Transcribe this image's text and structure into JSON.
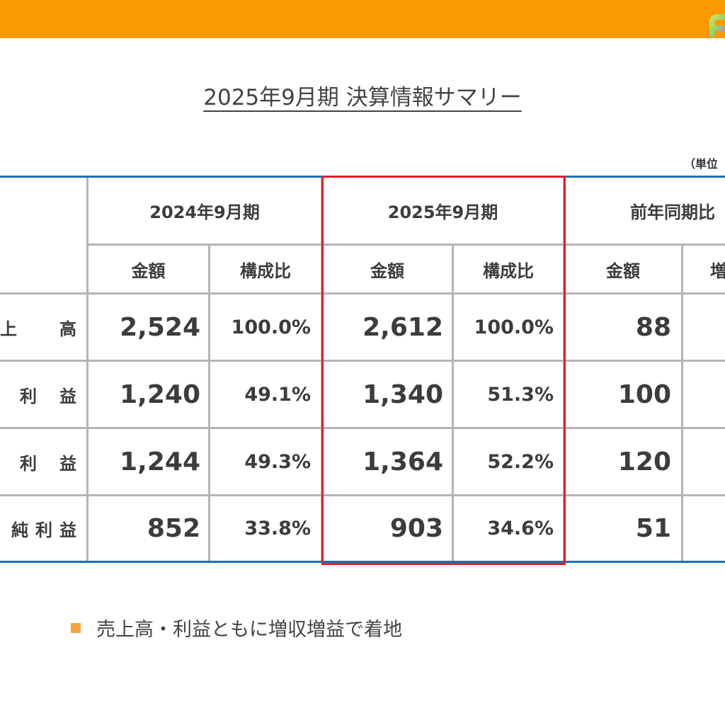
{
  "title": "2025年9月期 決算情報サマリー",
  "unit_label": "（単位",
  "colors": {
    "accent": "#fb9a00",
    "highlight_border": "#e0202a",
    "table_border": "#1a6fb8",
    "bullet": "#f4a33a"
  },
  "table": {
    "periods": [
      "2024年9月期",
      "2025年9月期",
      "前年同期比"
    ],
    "subheaders": [
      "金額",
      "構成比",
      "金額",
      "構成比",
      "金額",
      "増"
    ],
    "rows": [
      {
        "label": [
          "上",
          "高"
        ],
        "prev_amount": "2,524",
        "prev_ratio": "100.0%",
        "cur_amount": "2,612",
        "cur_ratio": "100.0%",
        "yoy_amount": "88"
      },
      {
        "label": [
          "利",
          "益"
        ],
        "prev_amount": "1,240",
        "prev_ratio": "49.1%",
        "cur_amount": "1,340",
        "cur_ratio": "51.3%",
        "yoy_amount": "100"
      },
      {
        "label": [
          "利",
          "益"
        ],
        "prev_amount": "1,244",
        "prev_ratio": "49.3%",
        "cur_amount": "1,364",
        "cur_ratio": "52.2%",
        "yoy_amount": "120"
      },
      {
        "label": [
          "純",
          "利",
          "益"
        ],
        "prev_amount": "852",
        "prev_ratio": "33.8%",
        "cur_amount": "903",
        "cur_ratio": "34.6%",
        "yoy_amount": "51"
      }
    ]
  },
  "note": "売上高・利益ともに増収増益で着地"
}
